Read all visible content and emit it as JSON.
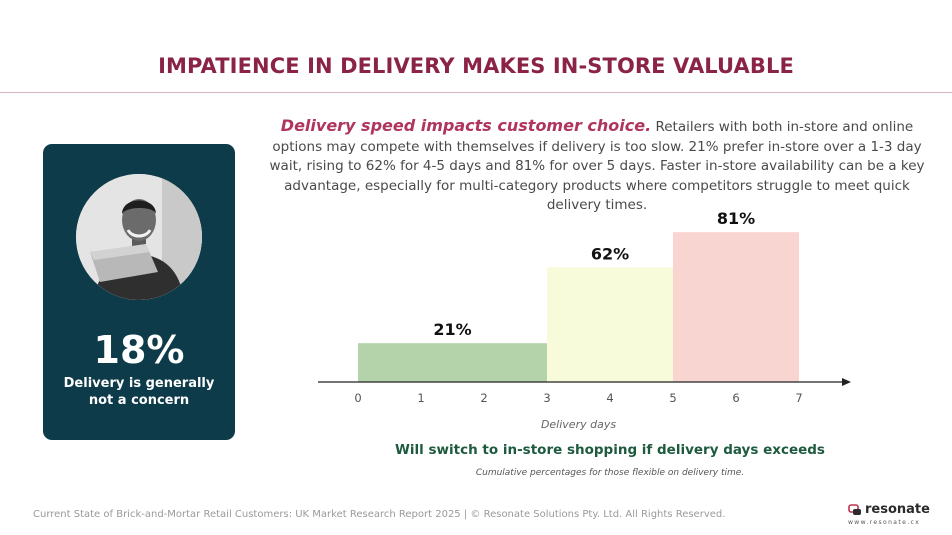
{
  "title": "IMPATIENCE IN DELIVERY MAKES IN-STORE VALUABLE",
  "intro": {
    "lead": "Delivery speed impacts customer choice.",
    "body": " Retailers with both in-store and online options may compete with themselves if delivery is too slow. 21% prefer in-store over a 1-3 day wait, rising to 62% for 4-5 days and 81% for over 5 days. Faster in-store availability can be a key advantage, especially for multi-category products where competitors struggle to meet quick delivery times."
  },
  "stat_card": {
    "value": "18%",
    "label": "Delivery is generally not a concern"
  },
  "chart_data": {
    "type": "bar",
    "xlabel": "Delivery days",
    "x_ticks": [
      "0",
      "1",
      "2",
      "3",
      "4",
      "5",
      "6",
      "7"
    ],
    "xlim": [
      0,
      7
    ],
    "ylim": [
      0,
      100
    ],
    "bars": [
      {
        "x_start": 0,
        "x_end": 3,
        "value": 21,
        "label": "21%",
        "color": "#b4d3ab"
      },
      {
        "x_start": 3,
        "x_end": 5,
        "value": 62,
        "label": "62%",
        "color": "#f7fbda"
      },
      {
        "x_start": 5,
        "x_end": 7,
        "value": 81,
        "label": "81%",
        "color": "#f9d5d1"
      }
    ],
    "caption": "Will switch to in-store shopping if delivery days exceeds",
    "note": "Cumulative percentages for those flexible on delivery time."
  },
  "footer": "Current State of Brick-and-Mortar Retail Customers: UK Market Research Report 2025 | © Resonate Solutions Pty. Ltd. All Rights Reserved.",
  "logo": {
    "name": "resonate",
    "url": "www.resonate.cx"
  },
  "colors": {
    "title": "#8a2346",
    "card_bg": "#0e3b4a",
    "accent": "#b0355e",
    "caption": "#1d5a3e"
  }
}
